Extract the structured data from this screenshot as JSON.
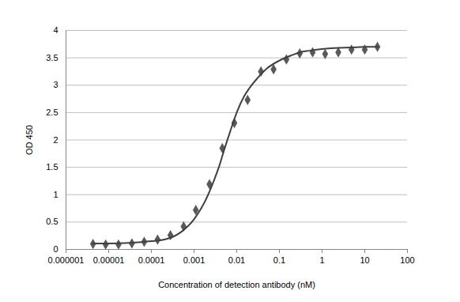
{
  "chart_data": {
    "type": "scatter",
    "xlabel": "Concentration of detection antibody (nM)",
    "ylabel": "OD 450",
    "log": "x",
    "grid": true,
    "xlim": [
      1e-06,
      100
    ],
    "xticks": [
      {
        "value": 1e-06,
        "label": "0.000001"
      },
      {
        "value": 1e-05,
        "label": "0.00001"
      },
      {
        "value": 0.0001,
        "label": "0.0001"
      },
      {
        "value": 0.001,
        "label": "0.001"
      },
      {
        "value": 0.01,
        "label": "0.01"
      },
      {
        "value": 0.1,
        "label": "0.1"
      },
      1,
      10,
      100
    ],
    "ylim": [
      0,
      4
    ],
    "yticks": [
      0,
      0.5,
      1,
      1.5,
      2,
      2.5,
      3,
      3.5,
      4
    ],
    "series": [
      {
        "type": "scatter",
        "marker": "diamond",
        "color": "#595959",
        "x": [
          4.3e-06,
          8.5e-06,
          1.7e-05,
          3.5e-05,
          6.8e-05,
          0.00014,
          0.00028,
          0.00057,
          0.0011,
          0.0023,
          0.0046,
          0.0088,
          0.018,
          0.037,
          0.073,
          0.146,
          0.3,
          0.6,
          1.18,
          2.4,
          4.9,
          10,
          19.8
        ],
        "values": [
          0.1,
          0.09,
          0.09,
          0.11,
          0.14,
          0.18,
          0.26,
          0.42,
          0.72,
          1.19,
          1.85,
          2.31,
          2.73,
          3.25,
          3.29,
          3.47,
          3.58,
          3.6,
          3.57,
          3.6,
          3.65,
          3.65,
          3.7
        ]
      },
      {
        "type": "line",
        "line_style": "solid",
        "color": "#404040",
        "x": [
          4.3e-06,
          1e-05,
          3e-05,
          0.0001,
          0.0002,
          0.0003,
          0.0005,
          0.001,
          0.002,
          0.003,
          0.004,
          0.005,
          0.007,
          0.01,
          0.015,
          0.02,
          0.03,
          0.05,
          0.1,
          0.2,
          0.3,
          0.5,
          1,
          2,
          5,
          10,
          20
        ],
        "values": [
          0.11,
          0.11,
          0.12,
          0.15,
          0.18,
          0.22,
          0.32,
          0.55,
          0.95,
          1.28,
          1.55,
          1.8,
          2.15,
          2.5,
          2.8,
          2.95,
          3.12,
          3.3,
          3.45,
          3.55,
          3.6,
          3.63,
          3.66,
          3.68,
          3.69,
          3.7,
          3.7
        ]
      }
    ]
  }
}
